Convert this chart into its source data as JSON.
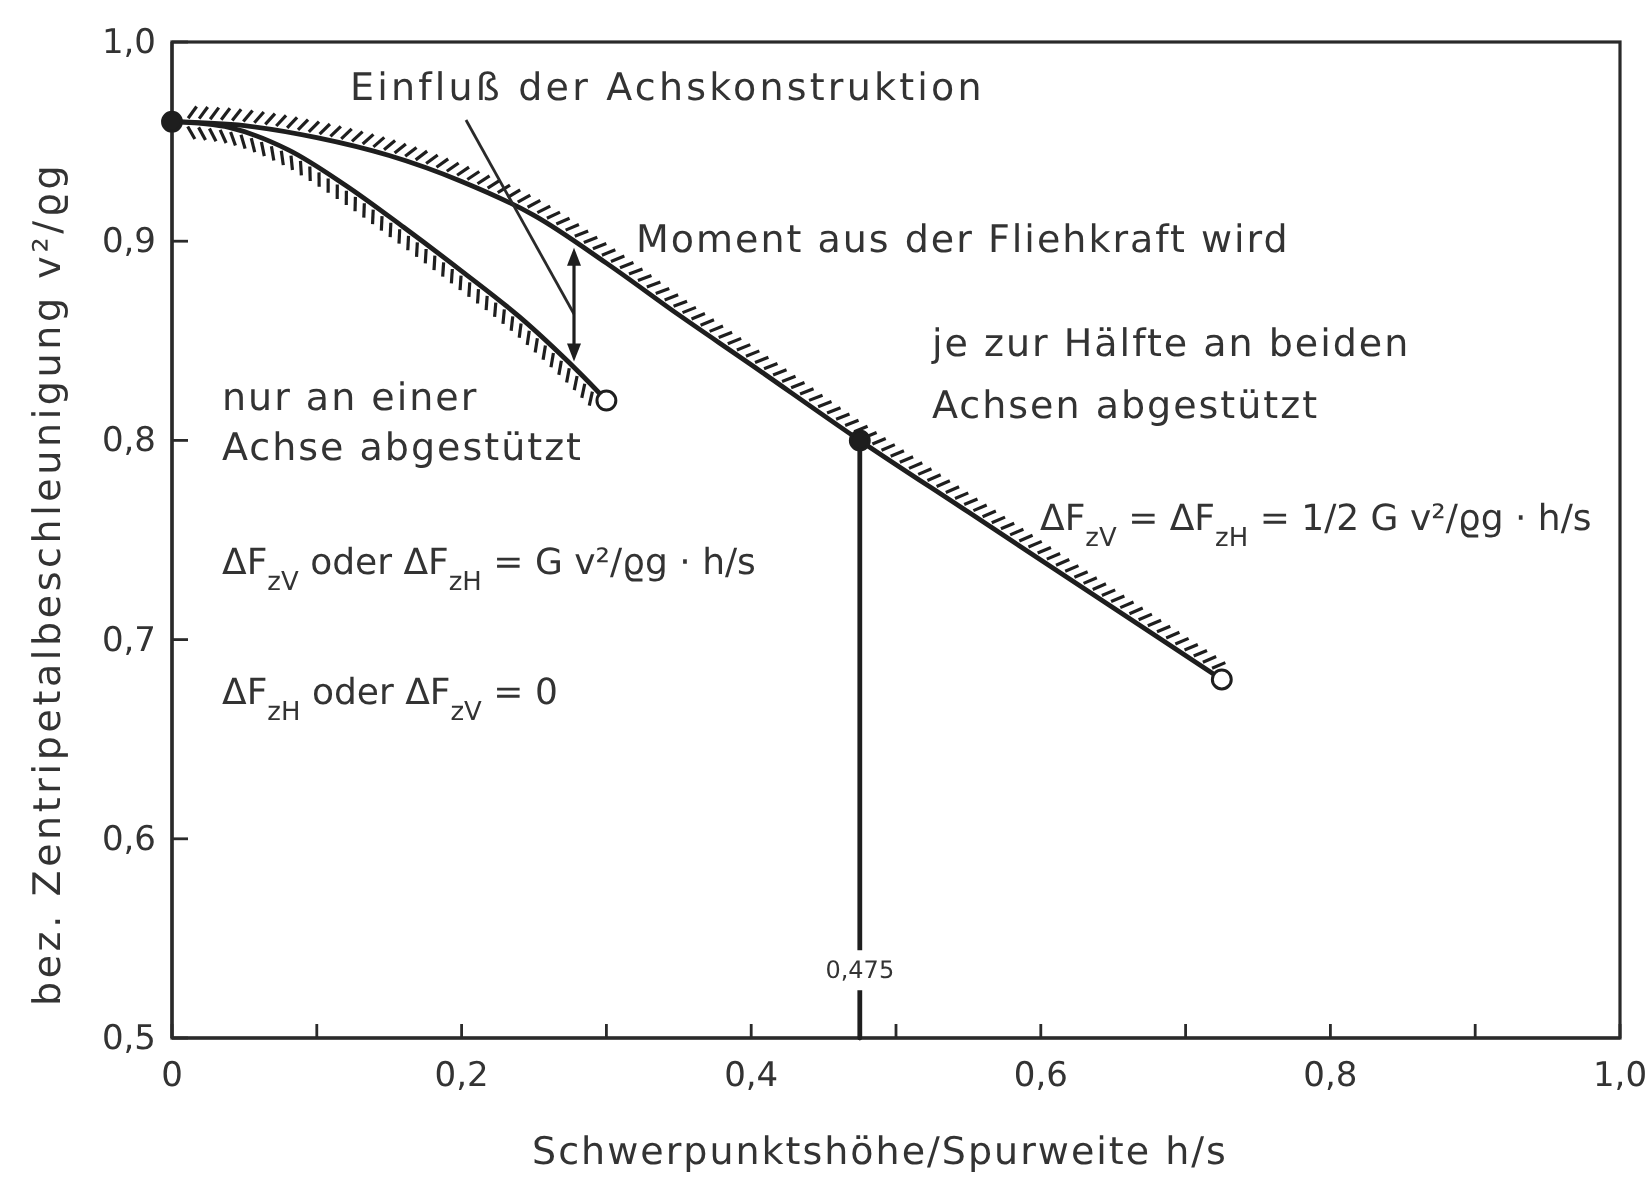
{
  "chart_data": {
    "type": "line",
    "xlabel": "Schwerpunktshöhe/Spurweite h/s",
    "ylabel": "bez. Zentripetalbeschleunigung v²/ϱg",
    "xlim": [
      0,
      1
    ],
    "ylim": [
      0.5,
      1
    ],
    "xticks": [
      0,
      {
        "value": 0.1,
        "label": null
      },
      {
        "value": 0.2,
        "label": "0,2"
      },
      {
        "value": 0.3,
        "label": null
      },
      {
        "value": 0.4,
        "label": "0,4"
      },
      {
        "value": 0.5,
        "label": null
      },
      {
        "value": 0.6,
        "label": "0,6"
      },
      {
        "value": 0.7,
        "label": null
      },
      {
        "value": 0.8,
        "label": "0,8"
      },
      {
        "value": 0.9,
        "label": null
      },
      {
        "value": 1,
        "label": "1,0"
      }
    ],
    "yticks": [
      {
        "value": 0.5,
        "label": "0,5"
      },
      {
        "value": 0.6,
        "label": "0,6"
      },
      {
        "value": 0.7,
        "label": "0,7"
      },
      {
        "value": 0.8,
        "label": "0,8"
      },
      {
        "value": 0.9,
        "label": "0,9"
      },
      {
        "value": 1,
        "label": "1,0"
      }
    ],
    "line_style": "solid",
    "marker": "none",
    "series": [
      {
        "color": "#1e1e1e",
        "x": [
          0,
          0.05,
          0.1,
          0.15,
          0.2,
          0.25,
          0.3,
          0.35,
          0.4,
          0.475,
          0.55,
          0.65,
          0.725
        ],
        "values": [
          0.96,
          0.958,
          0.952,
          0.943,
          0.93,
          0.913,
          0.889,
          0.863,
          0.838,
          0.8,
          0.764,
          0.716,
          0.68
        ]
      },
      {
        "color": "#1e1e1e",
        "x": [
          0,
          0.04,
          0.08,
          0.12,
          0.16,
          0.2,
          0.24,
          0.28,
          0.3
        ],
        "values": [
          0.96,
          0.957,
          0.946,
          0.928,
          0.907,
          0.885,
          0.862,
          0.835,
          0.82
        ]
      },
      {
        "color": "#1e1e1e",
        "x": [
          0.475,
          0.475
        ],
        "values": [
          0.5,
          0.8
        ]
      },
      {
        "type": "scatter",
        "marker": "circle",
        "colors": [
          "#1e1e1e",
          "#ffffff",
          "#1e1e1e",
          "#ffffff"
        ],
        "x": [
          0,
          0.3,
          0.475,
          0.725
        ],
        "values": [
          0.96,
          0.82,
          0.8,
          0.68
        ]
      }
    ],
    "annotations": [
      "Einfluß der Achskonstruktion",
      "Moment aus der Fliehkraft wird",
      "je zur Hälfte an beiden\nAchsen abgestützt",
      "ΔF$_{zV}$ = ΔF$_{zH}$ = 1/2 G v²/ϱg · h/s",
      "nur an einer\nAchse abgestützt",
      "ΔF$_{zV}$ oder ΔF$_{zH}$ = G v²/ϱg · h/s",
      "ΔF$_{zH}$ oder ΔF$_{zV}$ = 0",
      {
        "text": "0,475",
        "x": 0.475,
        "y": 0.53
      }
    ]
  }
}
